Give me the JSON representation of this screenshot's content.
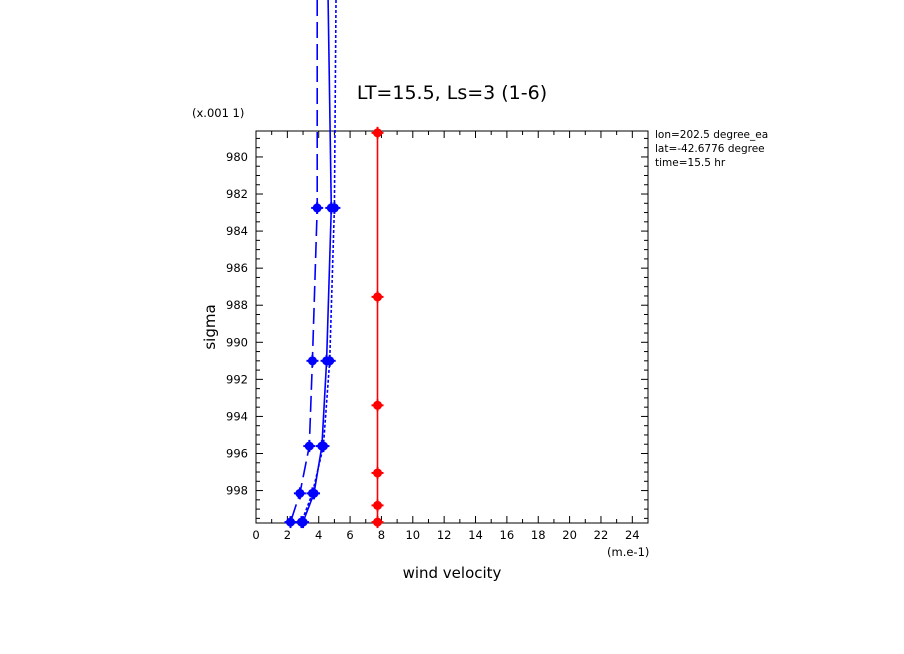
{
  "chart_data": {
    "type": "line",
    "title": "LT=15.5, Ls=3 (1-6)",
    "xlabel": "wind velocity",
    "ylabel": "sigma",
    "x_scale_label": "(m.e-1)",
    "y_scale_label": "(x.001 1)",
    "xlim": [
      0,
      25
    ],
    "ylim": [
      999.75,
      978.6
    ],
    "x_ticks": [
      0,
      2,
      4,
      6,
      8,
      10,
      12,
      14,
      16,
      18,
      20,
      22,
      24
    ],
    "y_ticks": [
      980,
      982,
      984,
      986,
      988,
      990,
      992,
      994,
      996,
      998
    ],
    "grid": false,
    "annotations": [
      "lon=202.5 degree_ea",
      "lat=-42.6776 degree",
      "time=15.5 hr"
    ],
    "series": [
      {
        "style": "long-dash",
        "color": "#0000ff",
        "points": [
          [
            3.9,
            960
          ],
          [
            3.9,
            982.75
          ],
          [
            3.6,
            991.0
          ],
          [
            3.4,
            995.6
          ],
          [
            2.8,
            998.15
          ],
          [
            2.2,
            999.7
          ]
        ]
      },
      {
        "style": "solid",
        "color": "#0000ff",
        "points": [
          [
            4.6,
            960
          ],
          [
            4.8,
            982.75
          ],
          [
            4.5,
            991.0
          ],
          [
            4.2,
            995.6
          ],
          [
            3.7,
            998.15
          ],
          [
            3.0,
            999.7
          ]
        ]
      },
      {
        "style": "dotted",
        "color": "#0000ff",
        "points": [
          [
            5.1,
            960
          ],
          [
            5.0,
            982.75
          ],
          [
            4.7,
            991.0
          ],
          [
            4.3,
            995.6
          ],
          [
            3.6,
            998.15
          ],
          [
            2.9,
            999.7
          ]
        ]
      },
      {
        "style": "solid",
        "color": "#ff0000",
        "points": [
          [
            7.75,
            978.7
          ],
          [
            7.75,
            987.55
          ],
          [
            7.75,
            993.4
          ],
          [
            7.75,
            997.05
          ],
          [
            7.75,
            998.8
          ],
          [
            7.75,
            999.7
          ]
        ]
      }
    ]
  }
}
